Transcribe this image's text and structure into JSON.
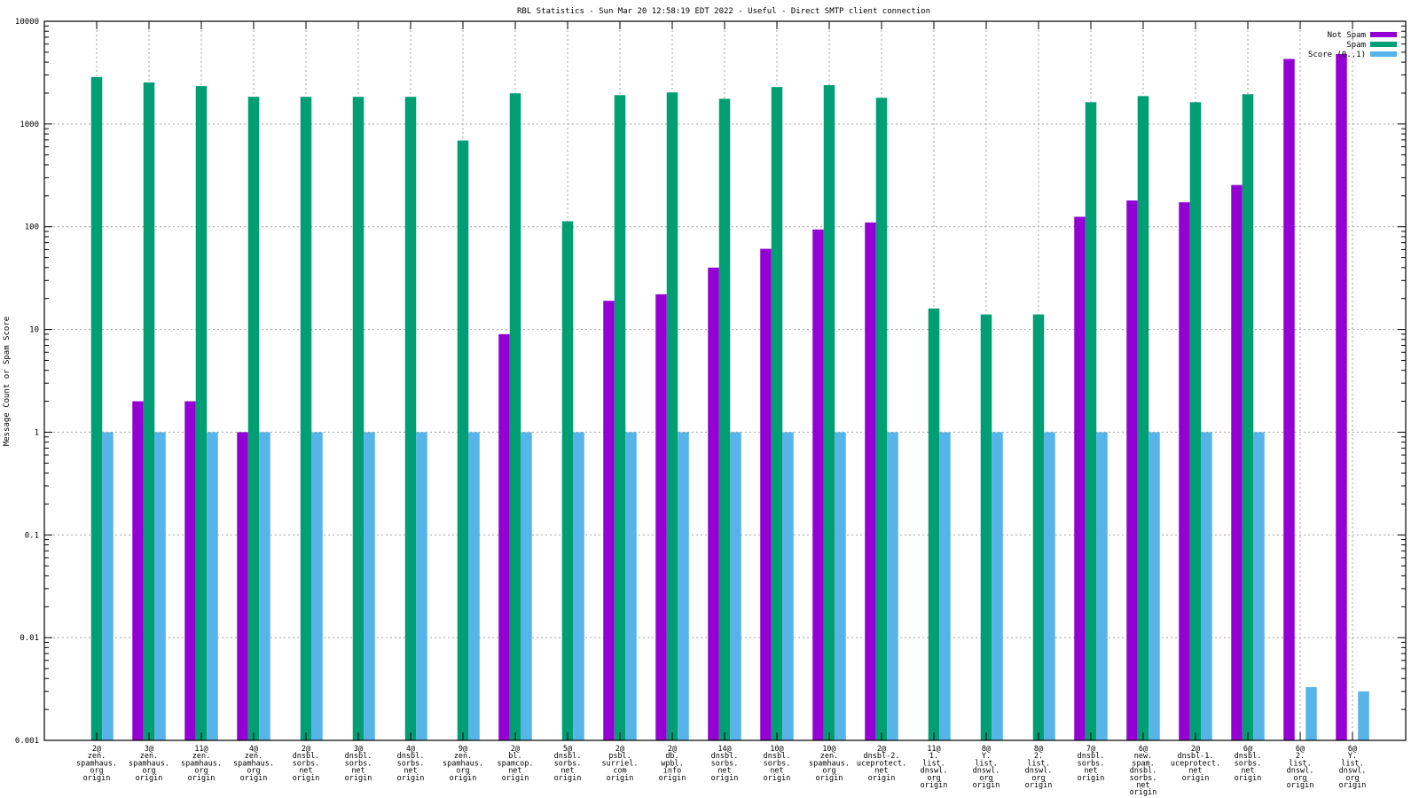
{
  "chart_data": {
    "type": "bar",
    "title": "RBL Statistics - Sun Mar 20 12:58:19 EDT 2022 - Useful - Direct SMTP client connection",
    "xlabel": "",
    "ylabel": "Message Count or Spam Score",
    "yscale": "log",
    "ylim": [
      0.001,
      10000
    ],
    "yticks": [
      "0.001",
      "0.01",
      "0.1",
      "1",
      "10",
      "100",
      "1000",
      "10000"
    ],
    "grid": true,
    "legend_position": "top-right",
    "categories": [
      [
        "2@",
        "zen.",
        "spamhaus.",
        "org",
        "origin"
      ],
      [
        "3@",
        "zen.",
        "spamhaus.",
        "org",
        "origin"
      ],
      [
        "11@",
        "zen.",
        "spamhaus.",
        "org",
        "origin"
      ],
      [
        "4@",
        "zen.",
        "spamhaus.",
        "org",
        "origin"
      ],
      [
        "2@",
        "dnsbl.",
        "sorbs.",
        "net",
        "origin"
      ],
      [
        "3@",
        "dnsbl.",
        "sorbs.",
        "net",
        "origin"
      ],
      [
        "4@",
        "dnsbl.",
        "sorbs.",
        "net",
        "origin"
      ],
      [
        "9@",
        "zen.",
        "spamhaus.",
        "org",
        "origin"
      ],
      [
        "2@",
        "bl.",
        "spamcop.",
        "net",
        "origin"
      ],
      [
        "5@",
        "dnsbl.",
        "sorbs.",
        "net",
        "origin"
      ],
      [
        "2@",
        "psbl.",
        "surriel.",
        "com",
        "origin"
      ],
      [
        "2@",
        "db.",
        "wpbl.",
        "info",
        "origin"
      ],
      [
        "14@",
        "dnsbl.",
        "sorbs.",
        "net",
        "origin"
      ],
      [
        "10@",
        "dnsbl.",
        "sorbs.",
        "net",
        "origin"
      ],
      [
        "10@",
        "zen.",
        "spamhaus.",
        "org",
        "origin"
      ],
      [
        "2@",
        "dnsbl-2.",
        "uceprotect.",
        "net",
        "origin"
      ],
      [
        "11@",
        "1.",
        "list.",
        "dnswl.",
        "org",
        "origin"
      ],
      [
        "8@",
        "Y.",
        "list.",
        "dnswl.",
        "org",
        "origin"
      ],
      [
        "8@",
        "2.",
        "list.",
        "dnswl.",
        "org",
        "origin"
      ],
      [
        "7@",
        "dnsbl.",
        "sorbs.",
        "net",
        "origin"
      ],
      [
        "6@",
        "new.",
        "spam.",
        "dnsbl.",
        "sorbs.",
        "net",
        "origin"
      ],
      [
        "2@",
        "dnsbl-1.",
        "uceprotect.",
        "net",
        "origin"
      ],
      [
        "6@",
        "dnsbl.",
        "sorbs.",
        "net",
        "origin"
      ],
      [
        "6@",
        "2.",
        "list.",
        "dnswl.",
        "org",
        "origin"
      ],
      [
        "6@",
        "Y.",
        "list.",
        "dnswl.",
        "org",
        "origin"
      ]
    ],
    "series": [
      {
        "name": "Not Spam",
        "color": "#9400d3",
        "values": [
          0,
          2,
          2,
          1,
          0,
          0,
          0,
          0,
          9,
          0,
          19,
          22,
          40,
          61,
          94,
          110,
          0,
          0,
          0,
          125,
          180,
          173,
          255,
          4300,
          4800
        ]
      },
      {
        "name": "Spam",
        "color": "#009e73",
        "values": [
          2870,
          2540,
          2340,
          1840,
          1840,
          1840,
          1840,
          690,
          1990,
          113,
          1910,
          2030,
          1760,
          2290,
          2390,
          1800,
          16,
          14,
          14,
          1630,
          1870,
          1630,
          1950,
          0,
          0
        ]
      },
      {
        "name": "Score (0..1)",
        "color": "#56b4e9",
        "values": [
          1,
          1,
          1,
          1,
          1,
          1,
          1,
          1,
          1,
          1,
          1,
          1,
          1,
          1,
          1,
          1,
          1,
          1,
          1,
          1,
          1,
          1,
          1,
          0.0033,
          0.003
        ]
      }
    ]
  }
}
